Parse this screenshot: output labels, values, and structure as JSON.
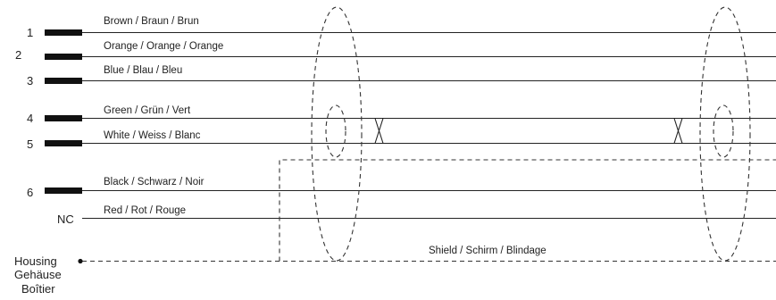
{
  "wires": [
    {
      "pin": "1",
      "label": "Brown / Braun / Brun"
    },
    {
      "pin": "2",
      "label": "Orange / Orange / Orange"
    },
    {
      "pin": "3",
      "label": "Blue / Blau / Bleu"
    },
    {
      "pin": "4",
      "label": "Green / Grün / Vert"
    },
    {
      "pin": "5",
      "label": "White / Weiss / Blanc"
    },
    {
      "pin": "6",
      "label": "Black / Schwarz / Noir"
    },
    {
      "pin": "NC",
      "label": "Red / Rot / Rouge"
    }
  ],
  "housing": {
    "line1": "Housing",
    "line2": "Gehäuse",
    "line3": "Boîtier"
  },
  "shield_label": "Shield / Schirm / Blindage"
}
